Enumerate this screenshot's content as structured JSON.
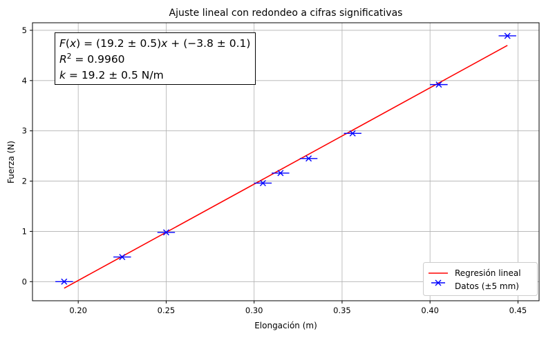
{
  "chart_data": {
    "type": "scatter",
    "title": "Ajuste lineal con redondeo a cifras significativas",
    "xlabel": "Elongación (m)",
    "ylabel": "Fuerza (N)",
    "xlim": [
      0.174,
      0.462
    ],
    "ylim": [
      -0.38,
      5.15
    ],
    "xticks": [
      0.2,
      0.25,
      0.3,
      0.35,
      0.4,
      0.45
    ],
    "xtick_labels": [
      "0.20",
      "0.25",
      "0.30",
      "0.35",
      "0.40",
      "0.45"
    ],
    "yticks": [
      0,
      1,
      2,
      3,
      4,
      5
    ],
    "ytick_labels": [
      "0",
      "1",
      "2",
      "3",
      "4",
      "5"
    ],
    "grid": true,
    "legend_position": "lower-right",
    "series": [
      {
        "name": "Regresión lineal",
        "kind": "line",
        "color": "#ff0000",
        "x": [
          0.192,
          0.444
        ],
        "y": [
          -0.13,
          4.7
        ]
      },
      {
        "name": "Datos (±5 mm)",
        "kind": "scatter-errorbar",
        "color": "#0000ff",
        "x_error": 0.005,
        "x": [
          0.192,
          0.225,
          0.25,
          0.305,
          0.315,
          0.331,
          0.356,
          0.405,
          0.444
        ],
        "y": [
          0.0,
          0.49,
          0.98,
          1.96,
          2.16,
          2.45,
          2.95,
          3.92,
          4.89
        ]
      }
    ],
    "annotation_lines": [
      "F(x) = (19.2 ± 0.5)x + (−3.8 ± 0.1)",
      "R² = 0.9960",
      "k = 19.2 ± 0.5 N/m"
    ]
  }
}
